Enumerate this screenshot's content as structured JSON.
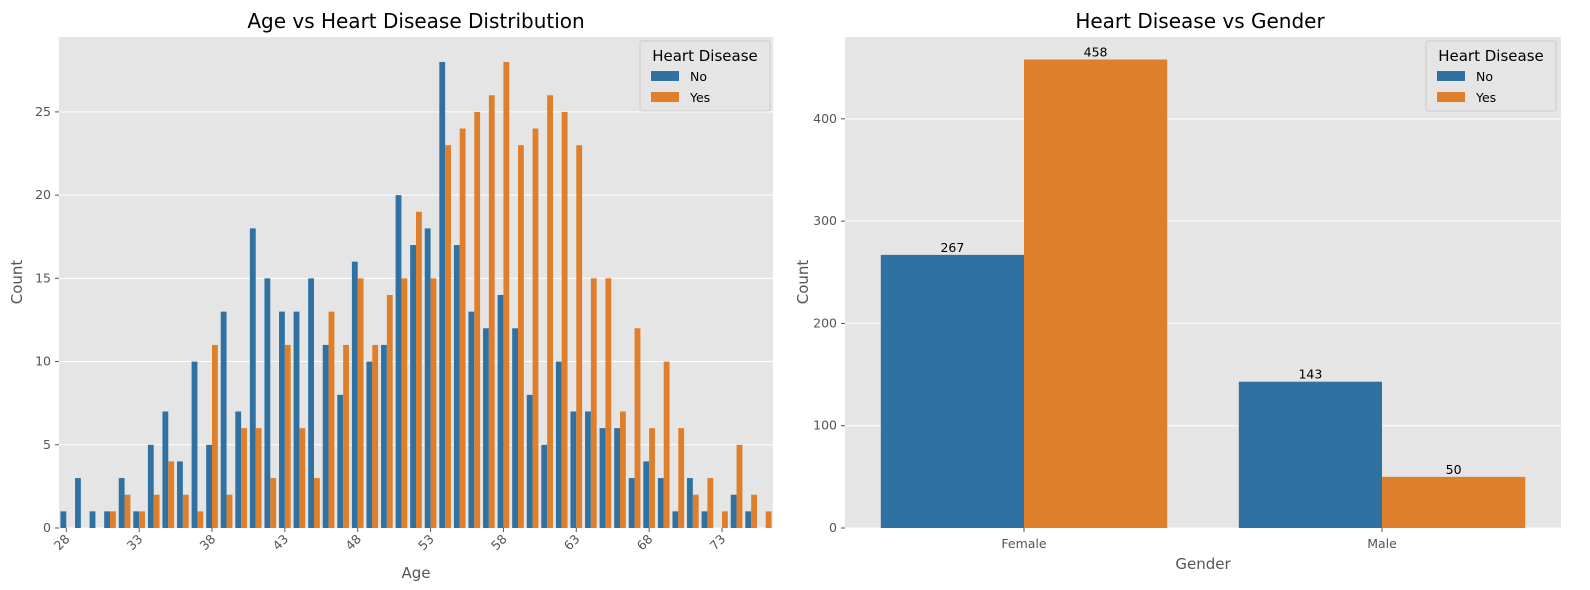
{
  "colors": {
    "no": "#2f72a2",
    "yes": "#e07f2b",
    "panel_bg": "#e5e5e5",
    "grid": "#ffffff"
  },
  "chart_data": [
    {
      "type": "bar",
      "title": "Age vs Heart Disease Distribution",
      "xlabel": "Age",
      "ylabel": "Count",
      "ylim": [
        0,
        29.5
      ],
      "yticks": [
        0,
        5,
        10,
        15,
        20,
        25
      ],
      "legend": {
        "title": "Heart Disease",
        "placement": "top-right"
      },
      "categories": [
        28,
        29,
        30,
        31,
        32,
        33,
        34,
        35,
        36,
        37,
        38,
        39,
        40,
        41,
        42,
        43,
        44,
        45,
        46,
        47,
        48,
        49,
        50,
        51,
        52,
        53,
        54,
        55,
        56,
        57,
        58,
        59,
        60,
        61,
        62,
        63,
        64,
        65,
        66,
        67,
        68,
        69,
        70,
        71,
        72,
        73,
        74,
        75,
        76
      ],
      "xticks": [
        28,
        33,
        38,
        43,
        48,
        53,
        58,
        63,
        68,
        73
      ],
      "series": [
        {
          "name": "No",
          "values": [
            1,
            3,
            1,
            1,
            3,
            1,
            5,
            7,
            4,
            10,
            5,
            13,
            7,
            18,
            15,
            13,
            13,
            15,
            11,
            8,
            16,
            10,
            11,
            20,
            17,
            18,
            28,
            17,
            13,
            12,
            14,
            12,
            8,
            5,
            10,
            7,
            7,
            6,
            6,
            3,
            4,
            3,
            1,
            3,
            1,
            0,
            2,
            1,
            0
          ]
        },
        {
          "name": "Yes",
          "values": [
            0,
            0,
            0,
            1,
            2,
            1,
            2,
            4,
            2,
            1,
            11,
            2,
            6,
            6,
            3,
            11,
            6,
            3,
            13,
            11,
            15,
            11,
            14,
            15,
            19,
            15,
            23,
            24,
            25,
            26,
            28,
            23,
            24,
            26,
            25,
            23,
            15,
            15,
            7,
            12,
            6,
            10,
            6,
            2,
            3,
            1,
            5,
            2,
            1
          ]
        }
      ]
    },
    {
      "type": "bar",
      "title": "Heart Disease vs Gender",
      "xlabel": "Gender",
      "ylabel": "Count",
      "ylim": [
        0,
        480
      ],
      "yticks": [
        0,
        100,
        200,
        300,
        400
      ],
      "legend": {
        "title": "Heart Disease",
        "placement": "top-right"
      },
      "categories": [
        "Female",
        "Male"
      ],
      "series": [
        {
          "name": "No",
          "values": [
            267,
            143
          ]
        },
        {
          "name": "Yes",
          "values": [
            458,
            50
          ]
        }
      ]
    }
  ]
}
